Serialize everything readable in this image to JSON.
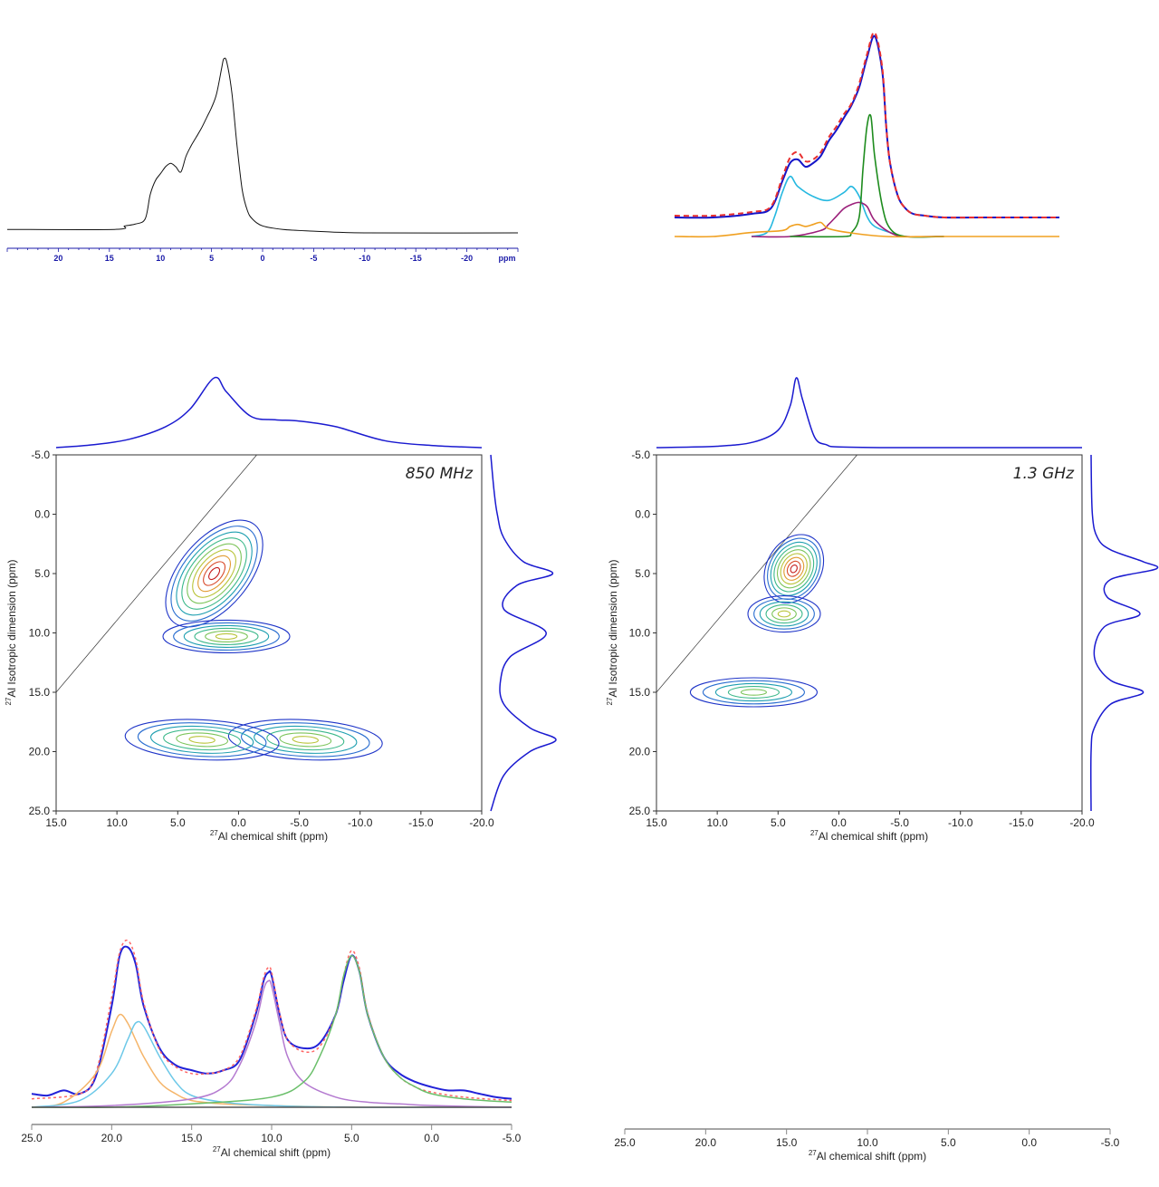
{
  "chart_data": [
    {
      "id": "p1",
      "type": "line",
      "description_free": true,
      "x_axis": {
        "ticks": [
          "20",
          "15",
          "10",
          "5",
          "0",
          "-5",
          "-10",
          "-15",
          "-20"
        ],
        "tick_values": [
          20,
          15,
          10,
          5,
          0,
          -5,
          -10,
          -15,
          -20
        ],
        "unit_label": "ppm",
        "xlim": [
          25,
          -25
        ]
      },
      "series": [
        {
          "x": [
            25,
            14.5,
            13.5,
            12.5,
            11.5,
            11,
            10.5,
            10,
            9.5,
            9,
            8.5,
            8,
            7.5,
            7,
            6.5,
            6,
            5.5,
            5,
            4.5,
            4,
            3.8,
            3.5,
            3,
            2.5,
            2,
            1.5,
            1,
            0,
            -2,
            -5,
            -10,
            -25
          ],
          "y": [
            0.02,
            0.02,
            0.04,
            0.05,
            0.08,
            0.22,
            0.3,
            0.34,
            0.38,
            0.4,
            0.38,
            0.35,
            0.44,
            0.5,
            0.55,
            0.6,
            0.66,
            0.72,
            0.8,
            0.95,
            1.0,
            0.98,
            0.8,
            0.5,
            0.25,
            0.13,
            0.08,
            0.04,
            0.02,
            0.01,
            0.0,
            0.0
          ]
        }
      ]
    },
    {
      "id": "p2",
      "type": "line",
      "series": [
        {
          "color": "#1515c8",
          "style": "solid",
          "x": [
            0,
            0.1,
            0.2,
            0.25,
            0.28,
            0.3,
            0.32,
            0.34,
            0.36,
            0.38,
            0.4,
            0.42,
            0.44,
            0.46,
            0.48,
            0.5,
            0.52,
            0.54,
            0.55,
            0.56,
            0.58,
            0.6,
            0.62,
            0.65,
            0.7,
            0.8,
            1.0
          ],
          "y": [
            0,
            0.0,
            0.02,
            0.05,
            0.2,
            0.3,
            0.32,
            0.28,
            0.3,
            0.34,
            0.42,
            0.48,
            0.55,
            0.62,
            0.72,
            0.88,
            1.0,
            0.8,
            0.5,
            0.3,
            0.12,
            0.05,
            0.02,
            0.01,
            0.0,
            0.0,
            0.0
          ]
        },
        {
          "color": "#e83030",
          "style": "dashed",
          "x": [
            0,
            0.1,
            0.2,
            0.25,
            0.28,
            0.3,
            0.32,
            0.34,
            0.36,
            0.38,
            0.4,
            0.42,
            0.44,
            0.46,
            0.48,
            0.5,
            0.52,
            0.54,
            0.55,
            0.56,
            0.58,
            0.6,
            0.62,
            0.65,
            0.7,
            0.8,
            1.0
          ],
          "y": [
            0.01,
            0.01,
            0.03,
            0.06,
            0.22,
            0.33,
            0.36,
            0.31,
            0.32,
            0.36,
            0.44,
            0.5,
            0.57,
            0.63,
            0.74,
            0.9,
            1.02,
            0.82,
            0.5,
            0.3,
            0.12,
            0.05,
            0.02,
            0.01,
            0.0,
            0.0,
            0.0
          ]
        },
        {
          "color": "#25b8e0",
          "style": "solid",
          "x": [
            0.2,
            0.24,
            0.26,
            0.28,
            0.3,
            0.32,
            0.36,
            0.4,
            0.44,
            0.46,
            0.48,
            0.5,
            0.52,
            0.56,
            0.6,
            0.7
          ],
          "y": [
            0,
            0.02,
            0.1,
            0.22,
            0.3,
            0.25,
            0.2,
            0.18,
            0.22,
            0.25,
            0.2,
            0.1,
            0.05,
            0.02,
            0.0,
            0.0
          ]
        },
        {
          "color": "#9b1f7a",
          "style": "solid",
          "x": [
            0.2,
            0.3,
            0.38,
            0.4,
            0.42,
            0.44,
            0.46,
            0.48,
            0.5,
            0.52,
            0.56,
            0.6,
            0.7
          ],
          "y": [
            0,
            0.0,
            0.03,
            0.06,
            0.1,
            0.14,
            0.16,
            0.17,
            0.15,
            0.08,
            0.02,
            0.0,
            0.0
          ]
        },
        {
          "color": "#1e8c1e",
          "style": "solid",
          "x": [
            0.3,
            0.44,
            0.46,
            0.48,
            0.49,
            0.5,
            0.51,
            0.52,
            0.54,
            0.56,
            0.6,
            0.7
          ],
          "y": [
            0,
            0.0,
            0.02,
            0.1,
            0.35,
            0.55,
            0.6,
            0.4,
            0.15,
            0.04,
            0.0,
            0.0
          ]
        },
        {
          "color": "#f0a020",
          "style": "solid",
          "x": [
            0,
            0.1,
            0.2,
            0.28,
            0.3,
            0.32,
            0.34,
            0.36,
            0.38,
            0.4,
            0.45,
            0.55,
            0.7,
            1.0
          ],
          "y": [
            0,
            0.0,
            0.02,
            0.03,
            0.05,
            0.06,
            0.05,
            0.06,
            0.07,
            0.04,
            0.02,
            0.0,
            0.0,
            0.0
          ]
        }
      ]
    },
    {
      "id": "mqmas850",
      "type": "contour",
      "label": "850 MHz",
      "xlabel": "27Al chemical shift (ppm)",
      "ylabel": "27Al Isotropic dimension (ppm)",
      "xlim": [
        15.0,
        -20.0
      ],
      "ylim": [
        -5.0,
        25.0
      ],
      "x_ticks": [
        "15.0",
        "10.0",
        "5.0",
        "0.0",
        "-5.0",
        "-10.0",
        "-15.0",
        "-20.0"
      ],
      "y_ticks": [
        "-5.0",
        "0.0",
        "5.0",
        "10.0",
        "15.0",
        "20.0",
        "25.0"
      ],
      "peaks": [
        {
          "x": 2.0,
          "y": 5.0,
          "level": "high"
        },
        {
          "x": 1.0,
          "y": 10.3,
          "level": "mid"
        },
        {
          "x": -5.5,
          "y": 19.0,
          "level": "mid"
        },
        {
          "x": 3.0,
          "y": 19.0,
          "level": "mid"
        }
      ],
      "top_projection": {
        "x": [
          15,
          12,
          9,
          6,
          4,
          2,
          1,
          -1,
          -3,
          -5,
          -8,
          -12,
          -16,
          -20
        ],
        "y": [
          0.0,
          0.04,
          0.12,
          0.3,
          0.55,
          1.0,
          0.8,
          0.45,
          0.4,
          0.38,
          0.3,
          0.1,
          0.03,
          0.0
        ]
      },
      "side_projection": {
        "ppm": [
          -5,
          -2,
          0,
          2,
          4,
          5,
          6,
          8,
          10,
          12,
          14,
          16,
          18,
          19,
          20,
          22,
          25
        ],
        "intensity": [
          0.0,
          0.05,
          0.1,
          0.2,
          0.5,
          0.95,
          0.4,
          0.2,
          0.85,
          0.3,
          0.15,
          0.2,
          0.6,
          1.0,
          0.6,
          0.2,
          0.0
        ]
      }
    },
    {
      "id": "mqmas1300",
      "type": "contour",
      "label": "1.3 GHz",
      "xlabel": "27Al chemical shift (ppm)",
      "ylabel": "27Al Isotropic dimension (ppm)",
      "xlim": [
        15.0,
        -20.0
      ],
      "ylim": [
        -5.0,
        25.0
      ],
      "x_ticks": [
        "15.0",
        "10.0",
        "5.0",
        "0.0",
        "-5.0",
        "-10.0",
        "-15.0",
        "-20.0"
      ],
      "y_ticks": [
        "-5.0",
        "0.0",
        "5.0",
        "10.0",
        "15.0",
        "20.0",
        "25.0"
      ],
      "peaks": [
        {
          "x": 3.7,
          "y": 4.6,
          "level": "high"
        },
        {
          "x": 4.5,
          "y": 8.4,
          "level": "mid"
        },
        {
          "x": 7.0,
          "y": 15.0,
          "level": "low"
        }
      ],
      "top_projection": {
        "x": [
          15,
          10,
          7,
          5,
          4,
          3.5,
          3,
          2,
          1,
          0,
          -5,
          -20
        ],
        "y": [
          0.0,
          0.02,
          0.08,
          0.25,
          0.6,
          1.0,
          0.7,
          0.15,
          0.04,
          0.01,
          0.0,
          0.0
        ]
      },
      "side_projection": {
        "ppm": [
          -5,
          0,
          2,
          3,
          4,
          4.6,
          5.5,
          7,
          8.4,
          9.5,
          12,
          14,
          15,
          16,
          18,
          20,
          25
        ],
        "intensity": [
          0.0,
          0.02,
          0.1,
          0.3,
          0.8,
          1.0,
          0.3,
          0.25,
          0.75,
          0.2,
          0.05,
          0.3,
          0.8,
          0.3,
          0.05,
          0.0,
          0.0
        ]
      }
    },
    {
      "id": "p5",
      "type": "line",
      "xlabel": "27Al chemical shift (ppm)",
      "xlim": [
        25.0,
        -5.0
      ],
      "x_ticks": [
        "25.0",
        "20.0",
        "15.0",
        "10.0",
        "5.0",
        "0.0",
        "-5.0"
      ],
      "series": [
        {
          "color": "#2222d8",
          "style": "solid",
          "x": [
            25,
            24,
            23,
            22,
            21,
            20,
            19.5,
            19,
            18.5,
            18,
            17,
            16,
            15,
            14,
            13,
            12,
            11,
            10.5,
            10.2,
            10,
            9.5,
            9,
            8,
            7,
            6,
            5.5,
            5,
            4.5,
            4,
            3,
            2,
            1,
            0,
            -1,
            -2,
            -3,
            -4,
            -5
          ],
          "y": [
            0.08,
            0.07,
            0.1,
            0.08,
            0.18,
            0.6,
            0.9,
            0.95,
            0.85,
            0.6,
            0.35,
            0.25,
            0.22,
            0.2,
            0.22,
            0.28,
            0.55,
            0.75,
            0.8,
            0.78,
            0.55,
            0.4,
            0.35,
            0.38,
            0.55,
            0.75,
            0.9,
            0.8,
            0.55,
            0.3,
            0.2,
            0.15,
            0.12,
            0.1,
            0.1,
            0.08,
            0.06,
            0.05
          ]
        },
        {
          "color": "#ff6666",
          "style": "dotted",
          "x": [
            25,
            22,
            21,
            20,
            19.5,
            19,
            18.5,
            18,
            17,
            16,
            15,
            14,
            13,
            12,
            11,
            10.5,
            10.2,
            10,
            9.5,
            9,
            8,
            7,
            6,
            5.5,
            5,
            4.5,
            4,
            3,
            2,
            1,
            0,
            -2,
            -5
          ],
          "y": [
            0.05,
            0.08,
            0.2,
            0.65,
            0.92,
            0.99,
            0.88,
            0.62,
            0.34,
            0.24,
            0.2,
            0.2,
            0.22,
            0.3,
            0.57,
            0.77,
            0.83,
            0.8,
            0.56,
            0.4,
            0.33,
            0.36,
            0.55,
            0.78,
            0.93,
            0.82,
            0.56,
            0.3,
            0.18,
            0.12,
            0.09,
            0.06,
            0.04
          ]
        },
        {
          "color": "#f5b56a",
          "style": "solid",
          "x": [
            25,
            23,
            21,
            20,
            19.5,
            19,
            18.5,
            18,
            17,
            16,
            15,
            13,
            10,
            5,
            0,
            -5
          ],
          "y": [
            0.0,
            0.03,
            0.2,
            0.45,
            0.55,
            0.5,
            0.4,
            0.3,
            0.15,
            0.08,
            0.04,
            0.02,
            0.01,
            0.0,
            0.0,
            0.0
          ]
        },
        {
          "color": "#6cc8e8",
          "style": "solid",
          "x": [
            25,
            22,
            20,
            19,
            18.5,
            18,
            17,
            16,
            15,
            13,
            10,
            5,
            0,
            -5
          ],
          "y": [
            0.0,
            0.04,
            0.2,
            0.4,
            0.5,
            0.48,
            0.3,
            0.15,
            0.07,
            0.03,
            0.01,
            0.0,
            0.0,
            0.0
          ]
        },
        {
          "color": "#b47ad0",
          "style": "solid",
          "x": [
            25,
            20,
            15,
            13,
            12,
            11,
            10.5,
            10.2,
            10,
            9.5,
            9,
            8,
            6,
            4,
            2,
            0,
            -5
          ],
          "y": [
            0.0,
            0.01,
            0.05,
            0.12,
            0.25,
            0.5,
            0.7,
            0.75,
            0.72,
            0.5,
            0.3,
            0.15,
            0.06,
            0.03,
            0.02,
            0.01,
            0.0
          ]
        },
        {
          "color": "#6abf6a",
          "style": "solid",
          "x": [
            25,
            20,
            15,
            10,
            8,
            7,
            6,
            5.5,
            5,
            4.5,
            4,
            3,
            2,
            1,
            0,
            -2,
            -5
          ],
          "y": [
            0.0,
            0.0,
            0.02,
            0.06,
            0.15,
            0.3,
            0.55,
            0.78,
            0.9,
            0.8,
            0.55,
            0.3,
            0.18,
            0.12,
            0.08,
            0.05,
            0.03
          ]
        },
        {
          "color": "#555555",
          "style": "solid",
          "x": [
            25,
            -5
          ],
          "y": [
            0.0,
            0.0
          ]
        }
      ]
    },
    {
      "id": "p6",
      "type": "axis",
      "xlabel": "27Al chemical shift (ppm)",
      "xlim": [
        25.0,
        -5.0
      ],
      "x_ticks": [
        "25.0",
        "20.0",
        "15.0",
        "10.0",
        "5.0",
        "0.0",
        "-5.0"
      ]
    }
  ],
  "labels": {
    "ppm_unit": "ppm",
    "mqmas850_field": "850 MHz",
    "mqmas1300_field": "1.3 GHz",
    "xlabel_sup": "27",
    "xlabel_rest": "Al chemical shift (ppm)",
    "ylabel_sup": "27",
    "ylabel_rest": "Al Isotropic dimension (ppm)"
  }
}
